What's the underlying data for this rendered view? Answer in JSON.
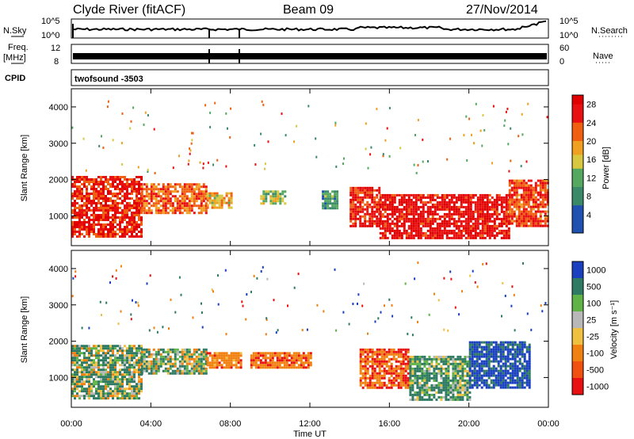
{
  "header": {
    "station": "Clyde River (fitACF)",
    "beam": "Beam 09",
    "date": "27/Nov/2014"
  },
  "strips": {
    "nsky": {
      "left_label": "N.Sky",
      "right_label": "N.Search",
      "left_ticks": [
        "10^5",
        "10^0"
      ],
      "right_ticks": [
        "10^5",
        "10^0"
      ]
    },
    "freq": {
      "left_label_line1": "Freq.",
      "left_label_line2": "[MHz]",
      "right_label": "Nave",
      "left_ticks": [
        "12",
        "8"
      ],
      "right_ticks": [
        "60",
        "0"
      ]
    },
    "cpid": {
      "left_label": "CPID",
      "text": "twofsound  -3503"
    }
  },
  "panels": {
    "power": {
      "ylabel": "Slant Range [km]",
      "yticks": [
        "4000",
        "3000",
        "2000",
        "1000"
      ],
      "colorbar_label": "Power [dB]",
      "colorbar_ticks": [
        "28",
        "24",
        "20",
        "16",
        "12",
        "8",
        "4"
      ]
    },
    "velocity": {
      "ylabel": "Slant Range [km]",
      "yticks": [
        "4000",
        "3000",
        "2000",
        "1000"
      ],
      "colorbar_label": "Velocity [m s⁻¹]",
      "colorbar_ticks": [
        "1000",
        "500",
        "100",
        "25",
        "-25",
        "-100",
        "-500",
        "-1000"
      ]
    }
  },
  "xaxis": {
    "label": "Time UT",
    "ticks": [
      "00:00",
      "04:00",
      "08:00",
      "12:00",
      "16:00",
      "20:00",
      "00:00"
    ]
  },
  "chart_data": [
    {
      "type": "heatmap",
      "title": "Clyde River (fitACF)   Beam 09   27/Nov/2014",
      "xlabel": "Time UT",
      "ylabel": "Slant Range [km]",
      "xlim_hours": [
        0,
        24
      ],
      "ylim_km": [
        180,
        4500
      ],
      "colorbar": {
        "label": "Power [dB]",
        "range": [
          0,
          30
        ],
        "ticks": [
          4,
          8,
          12,
          16,
          20,
          24,
          28
        ]
      },
      "regions": [
        {
          "t": [
            0.0,
            3.5
          ],
          "r": [
            400,
            2100
          ],
          "power_db": 26
        },
        {
          "t": [
            3.5,
            6.8
          ],
          "r": [
            1100,
            1900
          ],
          "power_db": 22
        },
        {
          "t": [
            6.8,
            8.0
          ],
          "r": [
            1250,
            1650
          ],
          "power_db": 18
        },
        {
          "t": [
            9.5,
            10.8
          ],
          "r": [
            1350,
            1700
          ],
          "power_db": 14
        },
        {
          "t": [
            12.6,
            13.4
          ],
          "r": [
            1200,
            1700
          ],
          "power_db": 10
        },
        {
          "t": [
            14.0,
            15.5
          ],
          "r": [
            700,
            1800
          ],
          "power_db": 26
        },
        {
          "t": [
            15.5,
            22.0
          ],
          "r": [
            400,
            1600
          ],
          "power_db": 28
        },
        {
          "t": [
            22.0,
            24.0
          ],
          "r": [
            700,
            2000
          ],
          "power_db": 24
        }
      ]
    },
    {
      "type": "heatmap",
      "xlabel": "Time UT",
      "ylabel": "Slant Range [km]",
      "xlim_hours": [
        0,
        24
      ],
      "ylim_km": [
        180,
        4500
      ],
      "colorbar": {
        "label": "Velocity [m s⁻¹]",
        "range": [
          -1000,
          1000
        ],
        "ticks": [
          1000,
          500,
          100,
          25,
          -25,
          -100,
          -500,
          -1000
        ]
      },
      "regions": [
        {
          "t": [
            0.0,
            3.5
          ],
          "r": [
            400,
            1900
          ],
          "velocity_ms": 80
        },
        {
          "t": [
            3.5,
            6.8
          ],
          "r": [
            1100,
            1800
          ],
          "velocity_ms": 60
        },
        {
          "t": [
            6.8,
            8.5
          ],
          "r": [
            1300,
            1700
          ],
          "velocity_ms": -300
        },
        {
          "t": [
            9.0,
            12.0
          ],
          "r": [
            1300,
            1700
          ],
          "velocity_ms": -400
        },
        {
          "t": [
            14.5,
            17.0
          ],
          "r": [
            700,
            1800
          ],
          "velocity_ms": -450
        },
        {
          "t": [
            17.0,
            20.0
          ],
          "r": [
            400,
            1600
          ],
          "velocity_ms": 150
        },
        {
          "t": [
            20.0,
            23.0
          ],
          "r": [
            700,
            2000
          ],
          "velocity_ms": 600
        }
      ]
    }
  ]
}
